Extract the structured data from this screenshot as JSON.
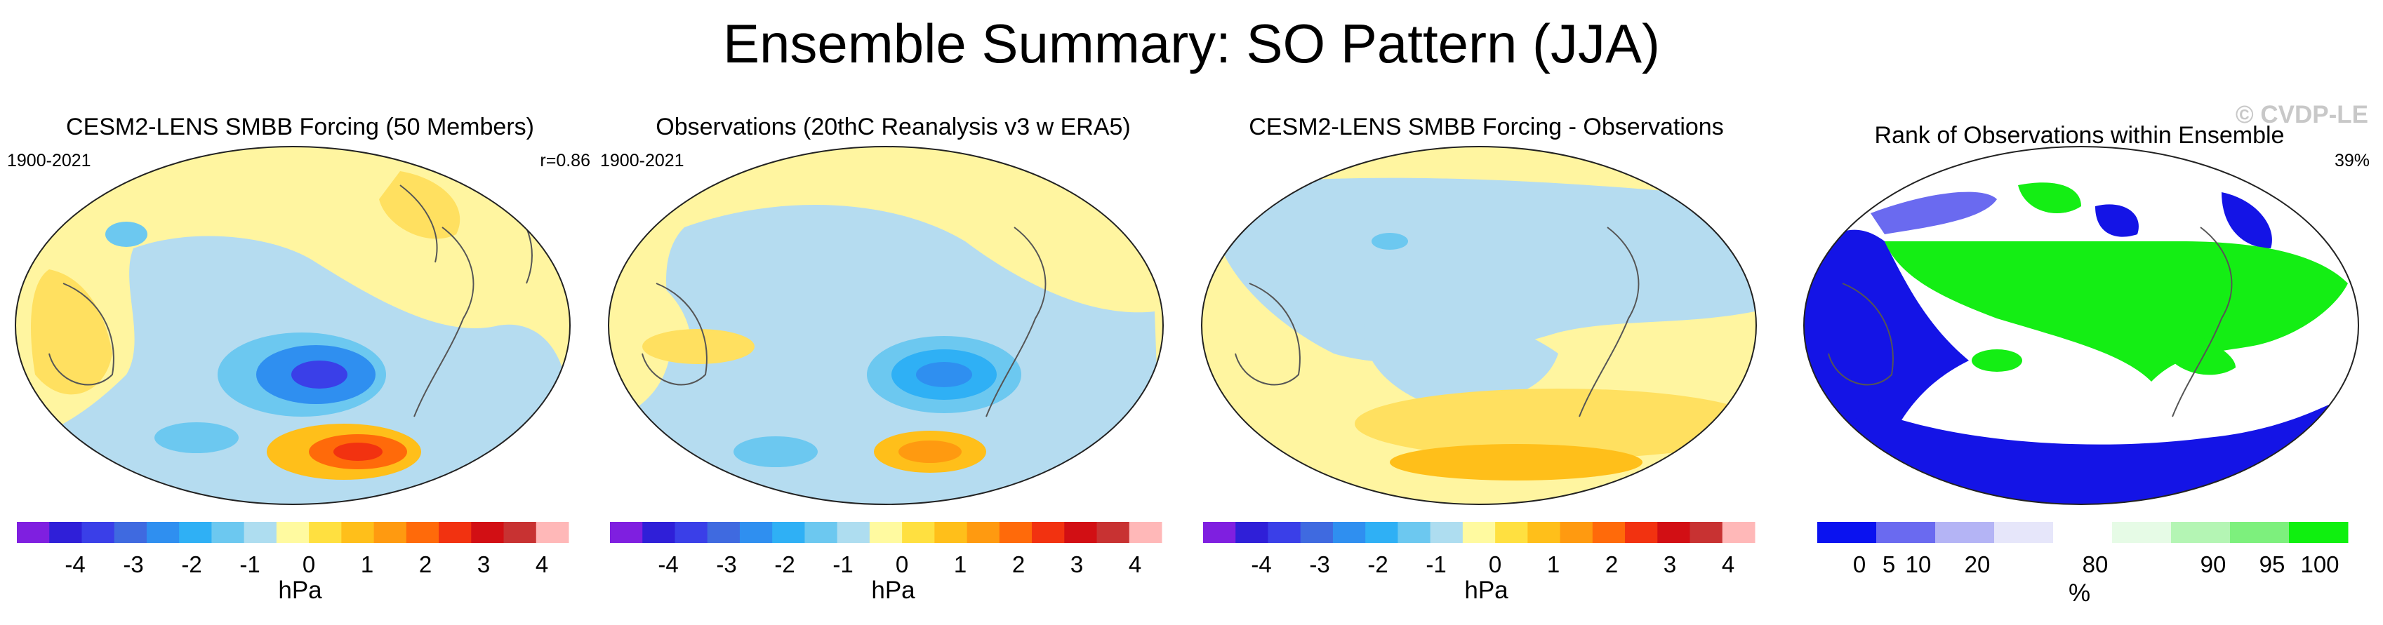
{
  "title": "Ensemble Summary: SO Pattern (JJA)",
  "watermark": "© CVDP-LE",
  "panels": [
    {
      "title": "CESM2-LENS SMBB Forcing (50 Members)",
      "left_text": "1900-2021",
      "right_text": "r=0.86"
    },
    {
      "title": "Observations (20thC Reanalysis v3 w ERA5)",
      "left_text": "1900-2021",
      "right_text": ""
    },
    {
      "title": "CESM2-LENS SMBB Forcing - Observations",
      "left_text": "",
      "right_text": ""
    },
    {
      "title": "Rank of Observations within Ensemble",
      "left_text": "",
      "right_text": "39%"
    }
  ],
  "pressure_colorbar": {
    "unit": "hPa",
    "colors": [
      "#7f1fe0",
      "#2f1fd8",
      "#3a3fe8",
      "#3f6ae0",
      "#2f8ff0",
      "#2fb0f5",
      "#6cc8f0",
      "#aeddf0",
      "#fffaa0",
      "#ffe040",
      "#ffbf1a",
      "#ff9a10",
      "#ff6a0a",
      "#f23210",
      "#d20f14",
      "#c83232",
      "#ffb8b8"
    ],
    "ticks": [
      "-4",
      "-3",
      "-2",
      "-1",
      "0",
      "1",
      "2",
      "3",
      "4"
    ]
  },
  "rank_colorbar": {
    "unit": "%",
    "colors": [
      "#0a12f0",
      "#6a6af0",
      "#b4b4f5",
      "#e6e6fa",
      "#ffffff",
      "#e6fbe6",
      "#b4f5b4",
      "#7df07d",
      "#0ff00f"
    ],
    "ticks": [
      "0",
      "5",
      "10",
      "20",
      "80",
      "90",
      "95",
      "100"
    ]
  },
  "palette": {
    "ocean_light_blue": "#b5dcf0",
    "land_yellow": "#fff5a0",
    "rank_blue": "#1414e6",
    "rank_green": "#14ee14"
  }
}
